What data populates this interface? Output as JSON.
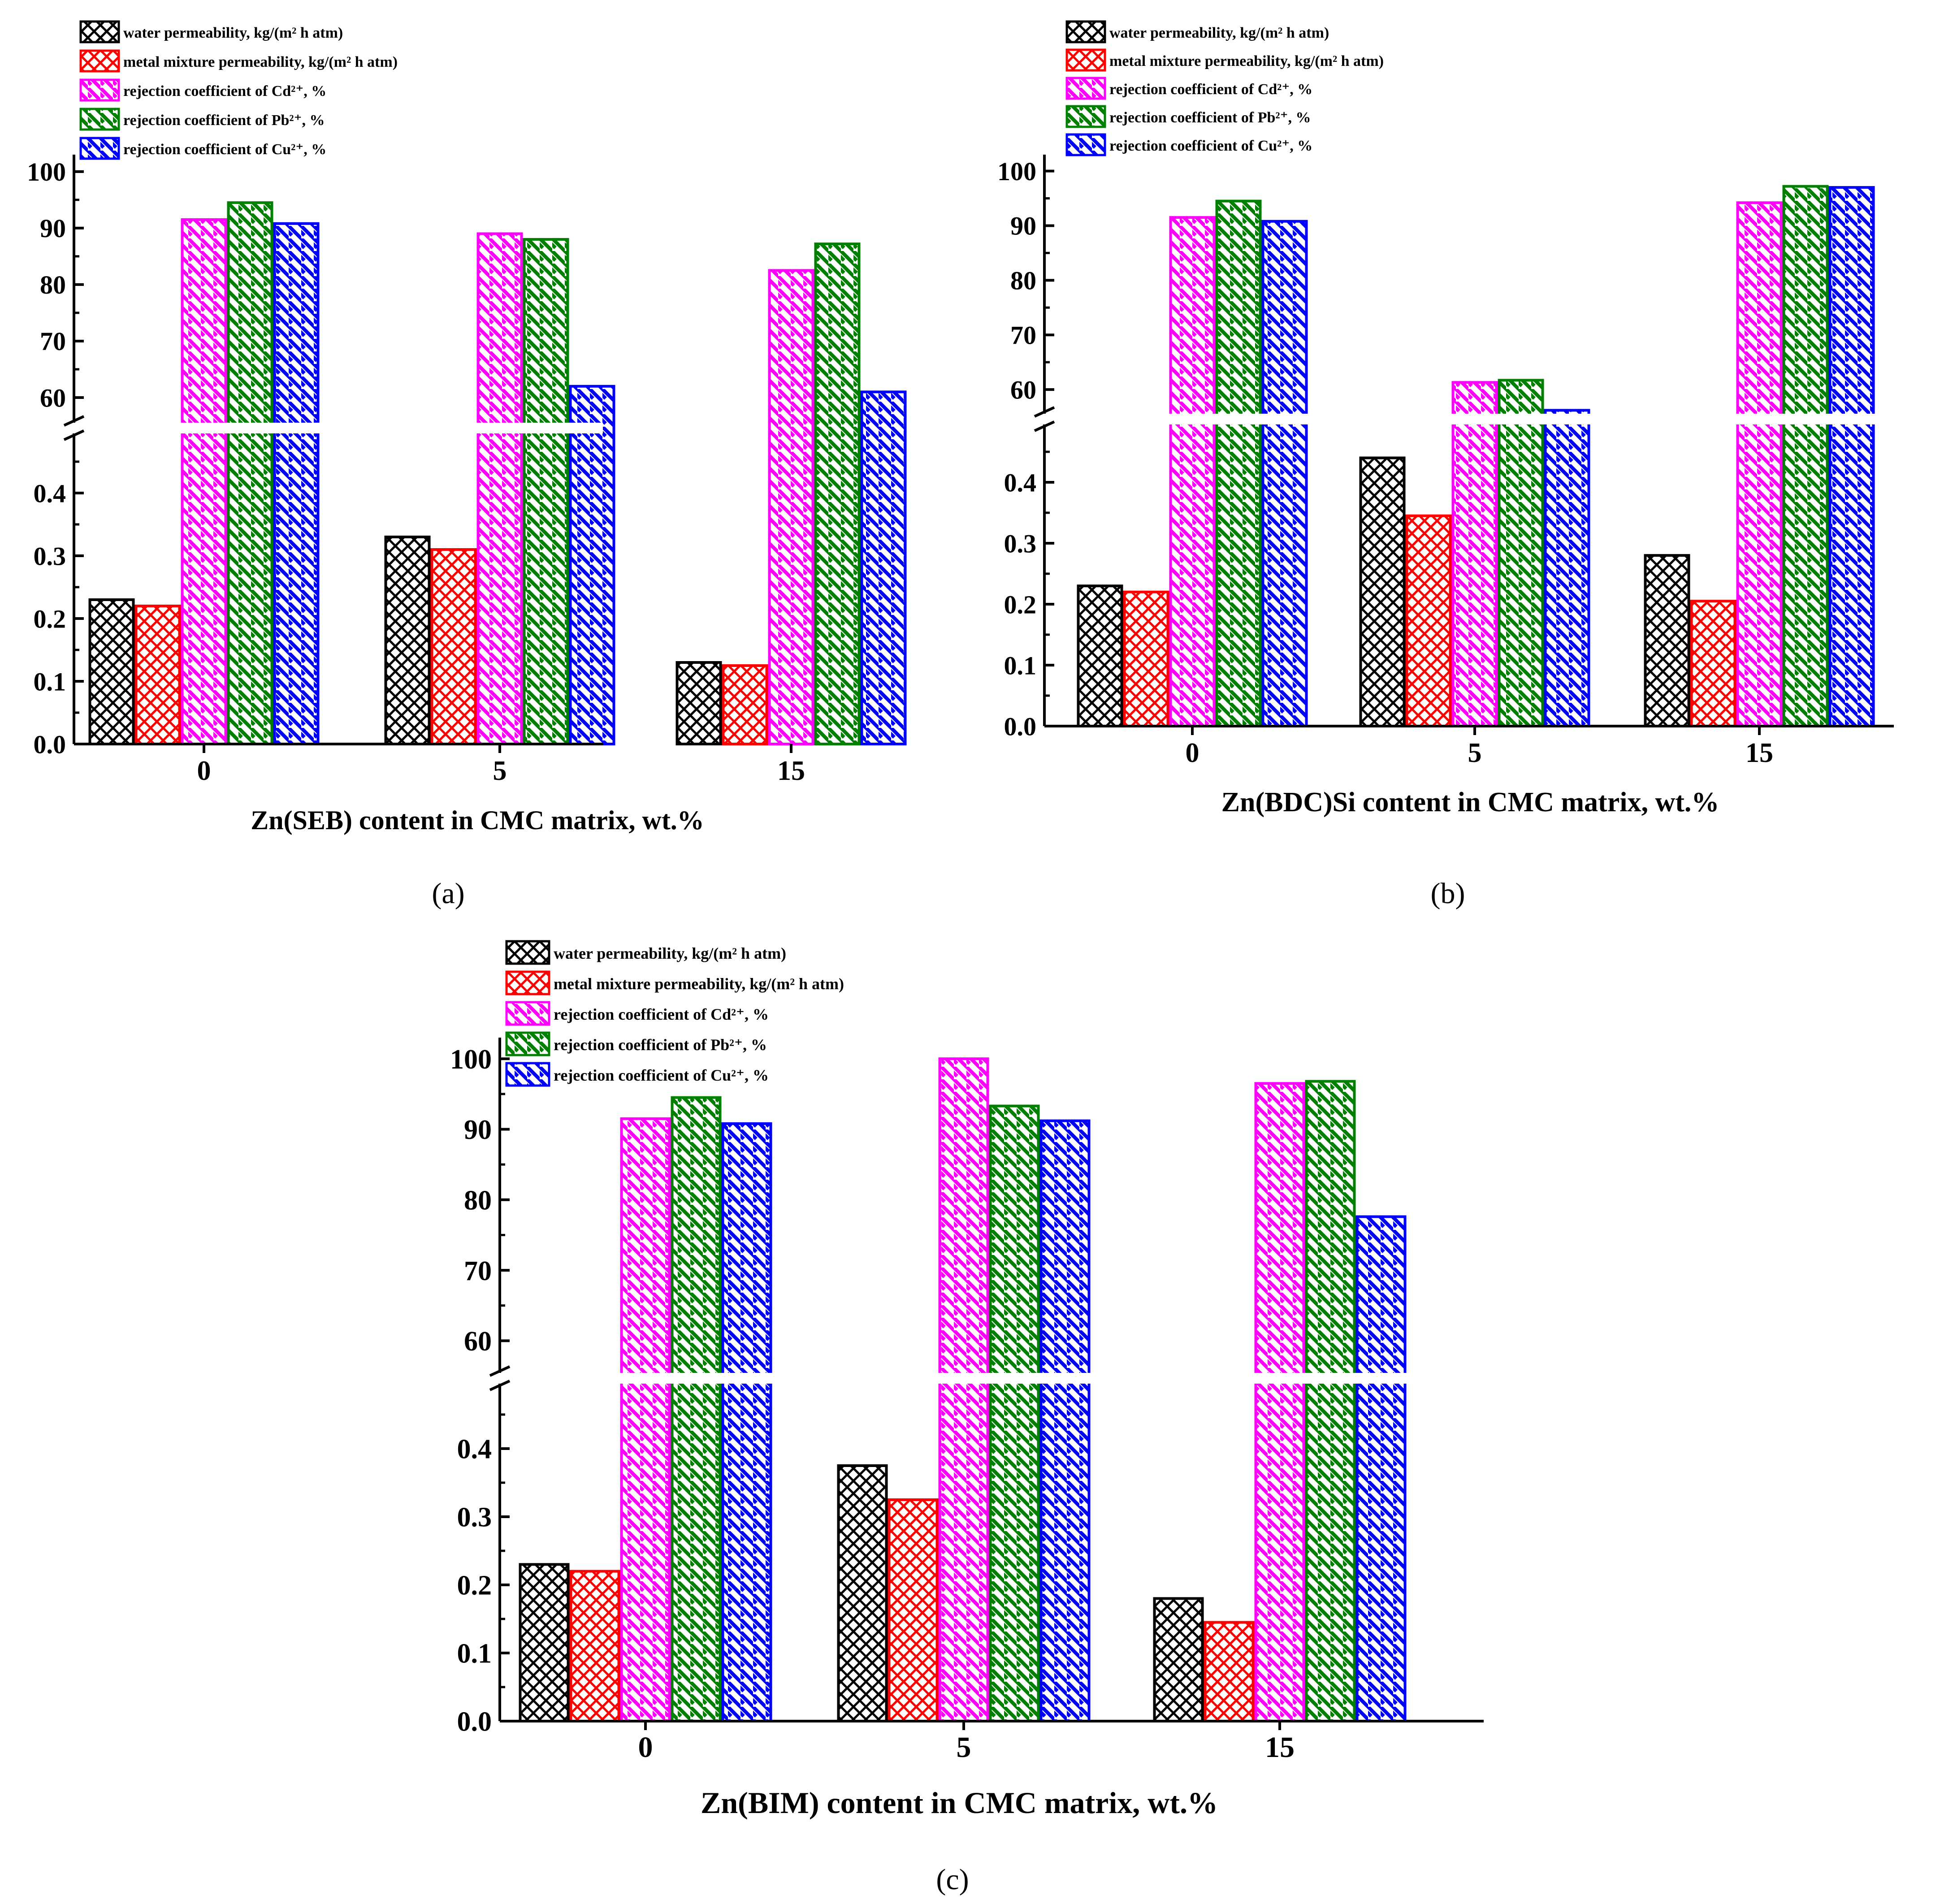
{
  "figure": {
    "panel_labels": [
      "(a)",
      "(b)",
      "(c)"
    ]
  },
  "legend": [
    {
      "label": "water permeability, kg/(m² h atm)",
      "color": "#000000",
      "pattern": "crosshatch"
    },
    {
      "label": "metal mixture permeability, kg/(m² h atm)",
      "color": "#ff0000",
      "pattern": "crosshatch"
    },
    {
      "label": "rejection coefficient of Cd²⁺, %",
      "color": "#ff00ff",
      "pattern": "diagonal"
    },
    {
      "label": "rejection coefficient of Pb²⁺, %",
      "color": "#008000",
      "pattern": "diagonal"
    },
    {
      "label": "rejection coefficient of Cu²⁺, %",
      "color": "#0000ff",
      "pattern": "diagonal"
    }
  ],
  "chart_data": [
    {
      "type": "bar",
      "panel": "(a)",
      "categories": [
        "0",
        "5",
        "15"
      ],
      "xlabel": "Zn(SEB) content in CMC matrix, wt.%",
      "ylabel": "",
      "y_axis_break": {
        "lower_range": [
          0,
          0.5
        ],
        "upper_range": [
          55,
          103
        ]
      },
      "lower_ticks": [
        "0.0",
        "0.1",
        "0.2",
        "0.3",
        "0.4"
      ],
      "upper_ticks": [
        "60",
        "70",
        "80",
        "90",
        "100"
      ],
      "series": [
        {
          "name": "water permeability, kg/(m² h atm)",
          "values": [
            0.23,
            0.33,
            0.13
          ]
        },
        {
          "name": "metal mixture permeability, kg/(m² h atm)",
          "values": [
            0.22,
            0.31,
            0.125
          ]
        },
        {
          "name": "rejection coefficient of Cd²⁺, %",
          "values": [
            91.5,
            89,
            82.5
          ]
        },
        {
          "name": "rejection coefficient of Pb²⁺, %",
          "values": [
            94.5,
            88,
            87.2
          ]
        },
        {
          "name": "rejection coefficient of Cu²⁺, %",
          "values": [
            90.8,
            62,
            61
          ]
        }
      ]
    },
    {
      "type": "bar",
      "panel": "(b)",
      "categories": [
        "0",
        "5",
        "15"
      ],
      "xlabel": "Zn(BDC)Si content in CMC matrix, wt.%",
      "ylabel": "",
      "y_axis_break": {
        "lower_range": [
          0,
          0.5
        ],
        "upper_range": [
          55,
          103
        ]
      },
      "lower_ticks": [
        "0.0",
        "0.1",
        "0.2",
        "0.3",
        "0.4"
      ],
      "upper_ticks": [
        "60",
        "70",
        "80",
        "90",
        "100"
      ],
      "series": [
        {
          "name": "water permeability, kg/(m² h atm)",
          "values": [
            0.23,
            0.44,
            0.28
          ]
        },
        {
          "name": "metal mixture permeability, kg/(m² h atm)",
          "values": [
            0.22,
            0.345,
            0.205
          ]
        },
        {
          "name": "rejection coefficient of Cd²⁺, %",
          "values": [
            91.5,
            61.3,
            94.2
          ]
        },
        {
          "name": "rejection coefficient of Pb²⁺, %",
          "values": [
            94.5,
            61.7,
            97.2
          ]
        },
        {
          "name": "rejection coefficient of Cu²⁺, %",
          "values": [
            90.8,
            56.2,
            97
          ]
        }
      ]
    },
    {
      "type": "bar",
      "panel": "(c)",
      "categories": [
        "0",
        "5",
        "15"
      ],
      "xlabel": "Zn(BIM) content in CMC matrix, wt.%",
      "ylabel": "",
      "y_axis_break": {
        "lower_range": [
          0,
          0.5
        ],
        "upper_range": [
          55,
          103
        ]
      },
      "lower_ticks": [
        "0.0",
        "0.1",
        "0.2",
        "0.3",
        "0.4"
      ],
      "upper_ticks": [
        "60",
        "70",
        "80",
        "90",
        "100"
      ],
      "series": [
        {
          "name": "water permeability, kg/(m² h atm)",
          "values": [
            0.23,
            0.375,
            0.18
          ]
        },
        {
          "name": "metal mixture permeability, kg/(m² h atm)",
          "values": [
            0.22,
            0.325,
            0.145
          ]
        },
        {
          "name": "rejection coefficient of Cd²⁺, %",
          "values": [
            91.5,
            100,
            96.5
          ]
        },
        {
          "name": "rejection coefficient of Pb²⁺, %",
          "values": [
            94.5,
            93.3,
            96.8
          ]
        },
        {
          "name": "rejection coefficient of Cu²⁺, %",
          "values": [
            90.8,
            91.2,
            77.6
          ]
        }
      ]
    }
  ]
}
